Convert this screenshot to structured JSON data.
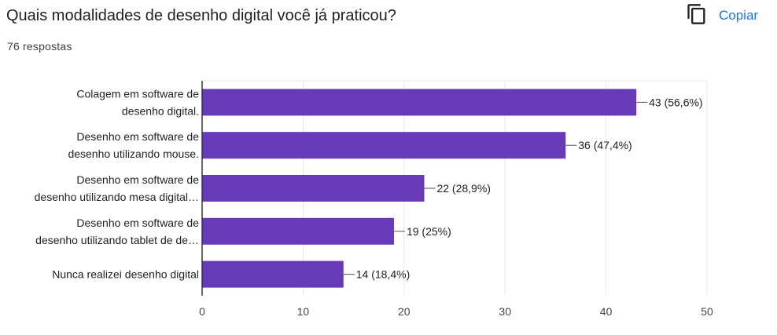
{
  "header": {
    "title": "Quais modalidades de desenho digital você já praticou?",
    "responses": "76 respostas",
    "copy_label": "Copiar",
    "copy_icon": "copy-icon"
  },
  "colors": {
    "bar": "#673ab7",
    "accent": "#1a73e8",
    "grid": "#e8e8e8",
    "axis": "#333333"
  },
  "chart_data": {
    "type": "bar",
    "orientation": "horizontal",
    "categories": [
      [
        "Colagem em software de",
        "desenho digital."
      ],
      [
        "Desenho em software de",
        "desenho utilizando mouse."
      ],
      [
        "Desenho em software de",
        "desenho utilizando mesa digital…"
      ],
      [
        "Desenho em software de",
        "desenho utilizando tablet de de…"
      ],
      [
        "Nunca realizei desenho digital"
      ]
    ],
    "values": [
      43,
      36,
      22,
      19,
      14
    ],
    "value_labels": [
      "43 (56,6%)",
      "36 (47,4%)",
      "22 (28,9%)",
      "19 (25%)",
      "14 (18,4%)"
    ],
    "xticks": [
      0,
      10,
      20,
      30,
      40,
      50
    ],
    "xlim": [
      0,
      50
    ],
    "grid": true
  }
}
